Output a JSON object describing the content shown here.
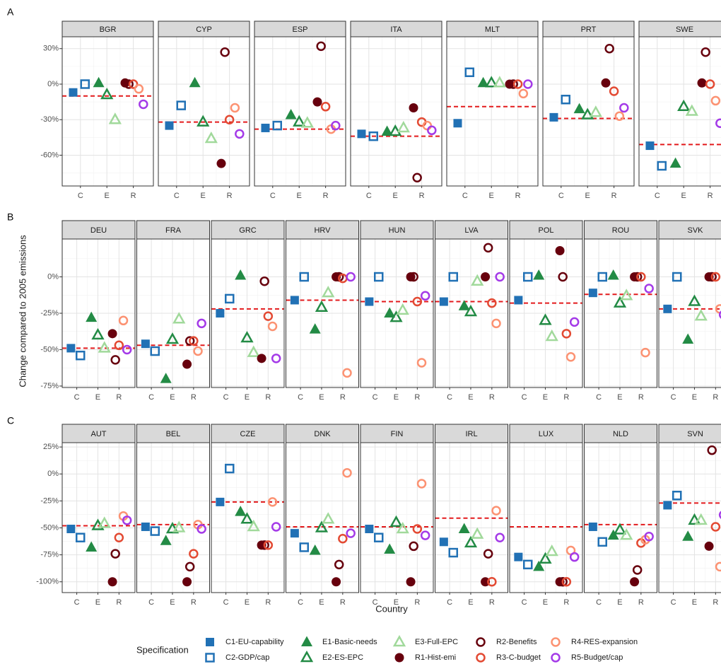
{
  "chart_data": {
    "type": "scatter",
    "y_label": "Change compared to 2005 emissions",
    "x_label": "Country",
    "legend_title": "Specification",
    "categories": [
      "C",
      "E",
      "R"
    ],
    "grid": true,
    "reference_color": "#e31a1c",
    "series": [
      {
        "name": "C1-EU-capability",
        "color": "#2171b5",
        "marker": "square",
        "filled": true
      },
      {
        "name": "C2-GDP/cap",
        "color": "#2171b5",
        "marker": "square",
        "filled": false
      },
      {
        "name": "E1-Basic-needs",
        "color": "#238b45",
        "marker": "triangle",
        "filled": true
      },
      {
        "name": "E2-ES-EPC",
        "color": "#238b45",
        "marker": "triangle",
        "filled": false
      },
      {
        "name": "E3-Full-EPC",
        "color": "#a1d99b",
        "marker": "triangle",
        "filled": false
      },
      {
        "name": "R1-Hist-emi",
        "color": "#67000d",
        "marker": "circle",
        "filled": true
      },
      {
        "name": "R2-Benefits",
        "color": "#67000d",
        "marker": "circle",
        "filled": false
      },
      {
        "name": "R3-C-budget",
        "color": "#e34a33",
        "marker": "circle",
        "filled": false
      },
      {
        "name": "R4-RES-expansion",
        "color": "#fc9272",
        "marker": "circle",
        "filled": false
      },
      {
        "name": "R5-Budget/cap",
        "color": "#a43ae8",
        "marker": "circle",
        "filled": false
      }
    ],
    "rows": [
      {
        "label": "A",
        "ylim": [
          -86,
          40
        ],
        "yticks": [
          {
            "value": -60,
            "label": "-60%"
          },
          {
            "value": -30,
            "label": "-30%"
          },
          {
            "value": 0,
            "label": "0%"
          },
          {
            "value": 30,
            "label": "30%"
          }
        ],
        "panels": [
          {
            "title": "BGR",
            "reference": -10,
            "values": [
              -7,
              0,
              1,
              -9,
              -30,
              1,
              0,
              0,
              -4,
              -17
            ]
          },
          {
            "title": "CYP",
            "reference": -32,
            "values": [
              -35,
              -18,
              1,
              -32,
              -46,
              -67,
              27,
              -30,
              -20,
              -42
            ]
          },
          {
            "title": "ESP",
            "reference": -38,
            "values": [
              -37,
              -35,
              -26,
              -32,
              -33,
              -15,
              32,
              -19,
              -38,
              -35
            ]
          },
          {
            "title": "ITA",
            "reference": -44,
            "values": [
              -42,
              -44,
              -40,
              -40,
              -37,
              -20,
              -79,
              -32,
              -35,
              -39
            ]
          },
          {
            "title": "MLT",
            "reference": -19,
            "values": [
              -33,
              10,
              1,
              1,
              1,
              0,
              0,
              0,
              -8,
              0
            ]
          },
          {
            "title": "PRT",
            "reference": -29,
            "values": [
              -28,
              -13,
              -21,
              -26,
              -24,
              1,
              30,
              -6,
              -27,
              -20
            ]
          },
          {
            "title": "SWE",
            "reference": -51,
            "values": [
              -52,
              -69,
              -67,
              -19,
              -23,
              1,
              27,
              0,
              -14,
              -33
            ]
          }
        ]
      },
      {
        "label": "B",
        "ylim": [
          -76,
          26
        ],
        "yticks": [
          {
            "value": -75,
            "label": "-75%"
          },
          {
            "value": -50,
            "label": "-50%"
          },
          {
            "value": -25,
            "label": "-25%"
          },
          {
            "value": 0,
            "label": "0%"
          }
        ],
        "panels": [
          {
            "title": "DEU",
            "reference": -49,
            "values": [
              -49,
              -54,
              -28,
              -40,
              -49,
              -39,
              -57,
              -47,
              -30,
              -50
            ]
          },
          {
            "title": "FRA",
            "reference": -47,
            "values": [
              -46,
              -51,
              -70,
              -43,
              -29,
              -60,
              -44,
              -44,
              -51,
              -32
            ]
          },
          {
            "title": "GRC",
            "reference": -22,
            "values": [
              -25,
              -15,
              1,
              -42,
              -52,
              -56,
              -3,
              -27,
              -34,
              -56
            ]
          },
          {
            "title": "HRV",
            "reference": -16,
            "values": [
              -16,
              0,
              -36,
              -21,
              -11,
              0,
              0,
              -1,
              -66,
              0
            ]
          },
          {
            "title": "HUN",
            "reference": -17,
            "values": [
              -17,
              0,
              -25,
              -28,
              -23,
              0,
              0,
              -17,
              -59,
              -13
            ]
          },
          {
            "title": "LVA",
            "reference": -17,
            "values": [
              -17,
              0,
              -20,
              -24,
              -3,
              0,
              20,
              -18,
              -32,
              0
            ]
          },
          {
            "title": "POL",
            "reference": -18,
            "values": [
              -16,
              0,
              1,
              -30,
              -41,
              18,
              0,
              -39,
              -55,
              -31
            ]
          },
          {
            "title": "ROU",
            "reference": -12,
            "values": [
              -11,
              0,
              1,
              -18,
              -13,
              0,
              0,
              0,
              -52,
              -8
            ]
          },
          {
            "title": "SVK",
            "reference": -22,
            "values": [
              -22,
              0,
              -43,
              -17,
              -27,
              0,
              0,
              0,
              -22,
              -26
            ]
          }
        ]
      },
      {
        "label": "C",
        "ylim": [
          -110,
          29
        ],
        "yticks": [
          {
            "value": -100,
            "label": "-100%"
          },
          {
            "value": -75,
            "label": "-75%"
          },
          {
            "value": -50,
            "label": "-50%"
          },
          {
            "value": -25,
            "label": "-25%"
          },
          {
            "value": 0,
            "label": "0%"
          },
          {
            "value": 25,
            "label": "25%"
          }
        ],
        "panels": [
          {
            "title": "AUT",
            "reference": -48,
            "values": [
              -51,
              -59,
              -68,
              -48,
              -46,
              -100,
              -74,
              -59,
              -39,
              -43
            ]
          },
          {
            "title": "BEL",
            "reference": -47,
            "values": [
              -49,
              -53,
              -62,
              -51,
              -50,
              -100,
              -86,
              -74,
              -47,
              -51
            ]
          },
          {
            "title": "CZE",
            "reference": -26,
            "values": [
              -26,
              5,
              -35,
              -42,
              -49,
              -66,
              -66,
              -66,
              -26,
              -49
            ]
          },
          {
            "title": "DNK",
            "reference": -49,
            "values": [
              -55,
              -68,
              -71,
              -50,
              -42,
              -100,
              -84,
              -60,
              1,
              -55
            ]
          },
          {
            "title": "FIN",
            "reference": -49,
            "values": [
              -51,
              -59,
              -70,
              -45,
              -51,
              -100,
              -67,
              -51,
              -9,
              -57
            ]
          },
          {
            "title": "IRL",
            "reference": -41,
            "values": [
              -63,
              -73,
              -51,
              -64,
              -56,
              -100,
              -74,
              -100,
              -34,
              -59
            ]
          },
          {
            "title": "LUX",
            "reference": -49,
            "values": [
              -77,
              -84,
              -86,
              -79,
              -72,
              -100,
              -100,
              -100,
              -71,
              -77
            ]
          },
          {
            "title": "NLD",
            "reference": -47,
            "values": [
              -49,
              -63,
              -57,
              -52,
              -57,
              -100,
              -89,
              -64,
              -61,
              -58
            ]
          },
          {
            "title": "SVN",
            "reference": -27,
            "values": [
              -29,
              -20,
              -58,
              -43,
              -43,
              -67,
              22,
              -49,
              -86,
              -38
            ]
          }
        ]
      }
    ]
  }
}
